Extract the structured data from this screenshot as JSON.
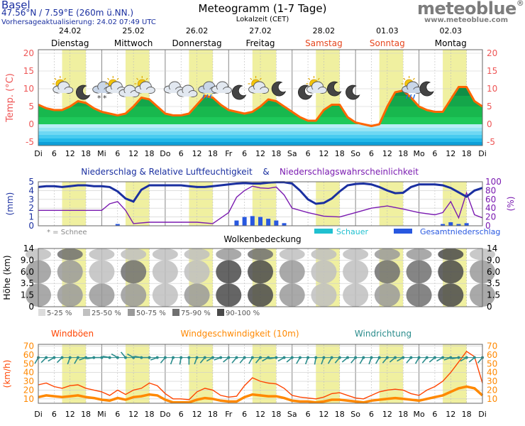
{
  "header": {
    "location": "Basel",
    "coordinates": "47.56°N / 7.59°E (260m ü.NN.)",
    "updated": "Vorhersageaktualisierung: 24.02 07:49 UTC",
    "title": "Meteogramm (1-7 Tage)",
    "timezone": "Lokalzeit (CET)",
    "brand": "meteoblue",
    "brand_mark": "®",
    "brand_url": "www.meteoblue.com"
  },
  "colors": {
    "weekend_day": "#e6461e",
    "day_band": "#f0f0a0",
    "temp_line": "#ff6600",
    "humidity_line": "#1a2fa0",
    "precip_prob_line": "#7a1ab0",
    "gust_line": "#ff4400",
    "wind_line": "#ff8800",
    "wind_dir": "#2a8c8c",
    "showers": "#20c0d0",
    "precip_total": "#2858e0"
  },
  "chart_data": [
    {
      "type": "area",
      "panel": "temperature",
      "dates": [
        "24.02",
        "25.02",
        "26.02",
        "27.02",
        "28.02",
        "01.03",
        "02.03"
      ],
      "day_names": [
        "Dienstag",
        "Mittwoch",
        "Donnerstag",
        "Freitag",
        "Samstag",
        "Sonntag",
        "Montag"
      ],
      "weekend": [
        false,
        false,
        false,
        false,
        true,
        true,
        false
      ],
      "ylabel": "Temp. (°C)",
      "yticks": [
        -5,
        0,
        5,
        10,
        15,
        20
      ],
      "ylim": [
        -6,
        21
      ],
      "xticks": [
        "Di",
        "6",
        "12",
        "18",
        "Mi",
        "6",
        "12",
        "18",
        "Do",
        "6",
        "12",
        "18",
        "Fr",
        "6",
        "12",
        "18",
        "Sa",
        "6",
        "12",
        "18",
        "So",
        "6",
        "12",
        "18",
        "Mo",
        "6",
        "12",
        "18",
        "Di"
      ],
      "icons": [
        "partly-cloudy-icon",
        "moon-icon",
        "snow-cloud-icon",
        "partly-cloudy-icon",
        "cloud-icon",
        "partly-cloudy-icon",
        "cloud-icon",
        "cloud-icon",
        "rain-cloud-icon",
        "cloud-icon",
        "moon-icon",
        "partly-cloudy-icon",
        "moon-icon",
        "moon-icon",
        "partly-cloudy-icon",
        "moon-icon",
        "moon-icon",
        "rain-shower-icon",
        "moon-icon"
      ],
      "series": [
        {
          "x": [
            0,
            3,
            6,
            9,
            12,
            15,
            18,
            21,
            24,
            27,
            30,
            33,
            36,
            39,
            42,
            45,
            48,
            51,
            54,
            57,
            60,
            63,
            66,
            69,
            72,
            75,
            78,
            81,
            84,
            87,
            90,
            93,
            96,
            99,
            102,
            105,
            108,
            111,
            114,
            117,
            120,
            123,
            126,
            129,
            132,
            135,
            138,
            141,
            144,
            147,
            150,
            153,
            156,
            159,
            162,
            165,
            168
          ],
          "values": [
            5.5,
            4.5,
            4,
            4,
            5,
            6.5,
            6,
            4.5,
            3.5,
            3,
            2.5,
            3,
            5,
            7.5,
            7,
            5,
            3,
            2.5,
            2.5,
            3,
            5.5,
            8,
            7.5,
            5.5,
            4,
            3.5,
            3,
            3.5,
            5,
            7,
            6.5,
            5,
            3.5,
            2,
            1,
            1,
            4,
            5.5,
            5.5,
            2,
            0.5,
            0,
            -0.5,
            0,
            5,
            9,
            9.5,
            7.5,
            5,
            4,
            3.5,
            3.5,
            7,
            10.5,
            10.5,
            6.5,
            5
          ]
        }
      ]
    },
    {
      "type": "line",
      "panel": "precipitation",
      "title": "Niederschlag & Relative Luftfeuchtigkeit",
      "title_amp": "&",
      "title2": "Niederschlagswahrscheinlichkeit",
      "ylabel": "(mm)",
      "ylabel_right": "(%)",
      "yticks": [
        0,
        1,
        2,
        3,
        4,
        5
      ],
      "yticks_right": [
        0,
        20,
        40,
        60,
        80,
        100
      ],
      "snow_note": "* = Schnee",
      "legend": [
        "Schauer",
        "Gesamtniederschlag"
      ],
      "series": [
        {
          "x": [
            0,
            3,
            6,
            9,
            12,
            15,
            18,
            21,
            24,
            27,
            30,
            33,
            36,
            39,
            42,
            45,
            48,
            51,
            54,
            57,
            60,
            63,
            66,
            69,
            72,
            75,
            78,
            81,
            84,
            87,
            90,
            93,
            96,
            99,
            102,
            105,
            108,
            111,
            114,
            117,
            120,
            123,
            126,
            129,
            132,
            135,
            138,
            141,
            144,
            147,
            150,
            153,
            156,
            159,
            162,
            165,
            168
          ],
          "values": [
            88,
            90,
            90,
            88,
            90,
            92,
            92,
            90,
            90,
            88,
            78,
            62,
            55,
            82,
            92,
            92,
            92,
            92,
            92,
            90,
            88,
            88,
            90,
            92,
            94,
            96,
            97,
            96,
            96,
            98,
            99,
            99,
            96,
            80,
            60,
            50,
            52,
            62,
            78,
            92,
            95,
            96,
            94,
            88,
            80,
            74,
            75,
            88,
            94,
            94,
            94,
            92,
            86,
            76,
            66,
            80,
            86
          ]
        },
        {
          "x": [
            0,
            6,
            12,
            18,
            24,
            27,
            30,
            33,
            36,
            42,
            48,
            54,
            60,
            66,
            72,
            75,
            78,
            81,
            84,
            87,
            90,
            93,
            96,
            102,
            108,
            114,
            120,
            126,
            132,
            138,
            144,
            150,
            153,
            156,
            159,
            162,
            165,
            168
          ],
          "values": [
            35,
            35,
            35,
            35,
            35,
            50,
            55,
            35,
            5,
            8,
            8,
            8,
            8,
            5,
            30,
            65,
            80,
            90,
            86,
            85,
            88,
            70,
            40,
            30,
            22,
            20,
            30,
            40,
            45,
            38,
            30,
            25,
            30,
            55,
            18,
            75,
            25,
            18
          ]
        },
        {
          "x": [
            0,
            6,
            12,
            18,
            24,
            27,
            30,
            33,
            36,
            42,
            48,
            54,
            60,
            66,
            72,
            75,
            78,
            81,
            84,
            87,
            90,
            93,
            96,
            102,
            108,
            114,
            120,
            126,
            132,
            138,
            144,
            150,
            153,
            156,
            159,
            162,
            165,
            168
          ],
          "values": [
            0,
            0,
            0,
            0,
            0,
            0,
            0.2,
            0,
            0,
            0,
            0,
            0,
            0,
            0,
            0,
            0.6,
            1,
            1.1,
            1,
            0.8,
            0.6,
            0.3,
            0,
            0,
            0,
            0,
            0,
            0,
            0,
            0,
            0,
            0,
            0.2,
            0.4,
            0.2,
            0.3,
            0,
            0
          ]
        }
      ]
    },
    {
      "type": "heatmap",
      "panel": "clouds",
      "title": "Wolkenbedeckung",
      "ylabel": "Höhe (km)",
      "yticks": [
        0,
        1.5,
        3.5,
        6.0,
        9.0,
        14
      ],
      "legend": [
        "5-25 %",
        "25-50 %",
        "50-75 %",
        "75-90 %",
        "90-100 %"
      ],
      "series": [
        {
          "name": "low",
          "x": [
            0,
            12,
            24,
            36,
            48,
            60,
            72,
            84,
            96,
            108,
            120,
            132,
            144,
            156,
            168
          ],
          "values": [
            60,
            55,
            70,
            50,
            35,
            50,
            90,
            100,
            60,
            40,
            30,
            65,
            80,
            95,
            55
          ]
        },
        {
          "name": "mid",
          "x": [
            0,
            12,
            24,
            36,
            48,
            60,
            72,
            84,
            96,
            108,
            120,
            132,
            144,
            156,
            168
          ],
          "values": [
            50,
            70,
            45,
            85,
            40,
            45,
            95,
            100,
            55,
            35,
            35,
            75,
            85,
            95,
            50
          ]
        },
        {
          "name": "high",
          "x": [
            0,
            12,
            24,
            36,
            48,
            60,
            72,
            84,
            96,
            108,
            120,
            132,
            144,
            156,
            168
          ],
          "values": [
            40,
            75,
            30,
            35,
            35,
            40,
            60,
            80,
            40,
            30,
            40,
            55,
            60,
            90,
            45
          ]
        }
      ]
    },
    {
      "type": "line",
      "panel": "wind",
      "titles": [
        "Windböen",
        "Windgeschwindigkeit (10m)",
        "Windrichtung"
      ],
      "ylabel": "(km/h)",
      "yticks": [
        10,
        20,
        30,
        40,
        50,
        60,
        70
      ],
      "ylim": [
        5,
        72
      ],
      "series": [
        {
          "name": "Windböen",
          "x": [
            0,
            3,
            6,
            9,
            12,
            15,
            18,
            21,
            24,
            27,
            30,
            33,
            36,
            39,
            42,
            45,
            48,
            51,
            54,
            57,
            60,
            63,
            66,
            69,
            72,
            75,
            78,
            81,
            84,
            87,
            90,
            93,
            96,
            99,
            102,
            105,
            108,
            111,
            114,
            117,
            120,
            123,
            126,
            129,
            132,
            135,
            138,
            141,
            144,
            147,
            150,
            153,
            156,
            159,
            162,
            165,
            168
          ],
          "values": [
            26,
            28,
            24,
            22,
            25,
            26,
            22,
            20,
            18,
            14,
            20,
            15,
            20,
            22,
            28,
            25,
            16,
            10,
            10,
            9,
            18,
            22,
            20,
            14,
            12,
            13,
            25,
            34,
            30,
            28,
            27,
            22,
            14,
            12,
            11,
            10,
            12,
            16,
            17,
            14,
            11,
            10,
            14,
            18,
            20,
            21,
            20,
            16,
            14,
            20,
            24,
            30,
            40,
            52,
            64,
            58,
            28
          ]
        },
        {
          "name": "Windgeschwindigkeit (10m)",
          "x": [
            0,
            3,
            6,
            9,
            12,
            15,
            18,
            21,
            24,
            27,
            30,
            33,
            36,
            39,
            42,
            45,
            48,
            51,
            54,
            57,
            60,
            63,
            66,
            69,
            72,
            75,
            78,
            81,
            84,
            87,
            90,
            93,
            96,
            99,
            102,
            105,
            108,
            111,
            114,
            117,
            120,
            123,
            126,
            129,
            132,
            135,
            138,
            141,
            144,
            147,
            150,
            153,
            156,
            159,
            162,
            165,
            168
          ],
          "values": [
            12,
            14,
            13,
            12,
            13,
            14,
            12,
            11,
            9,
            8,
            11,
            9,
            12,
            13,
            15,
            14,
            9,
            6,
            6,
            6,
            9,
            11,
            10,
            8,
            7,
            7,
            12,
            15,
            14,
            13,
            13,
            11,
            8,
            7,
            7,
            6,
            7,
            9,
            9,
            8,
            7,
            6,
            8,
            9,
            10,
            11,
            10,
            9,
            8,
            10,
            12,
            14,
            18,
            22,
            24,
            22,
            14
          ]
        }
      ],
      "wind_dir_deg": [
        210,
        225,
        240,
        225,
        200,
        210,
        250,
        260,
        270,
        280,
        300,
        320,
        300,
        280,
        270,
        250,
        220,
        200,
        190,
        180,
        200,
        220,
        240,
        250,
        230,
        220,
        220,
        210,
        220,
        240,
        260,
        240,
        230,
        210,
        200,
        190,
        200,
        210,
        220,
        230,
        220,
        210,
        200,
        210,
        220,
        230,
        240,
        220,
        210,
        220,
        230,
        240,
        250,
        260,
        240,
        230,
        220
      ]
    }
  ]
}
